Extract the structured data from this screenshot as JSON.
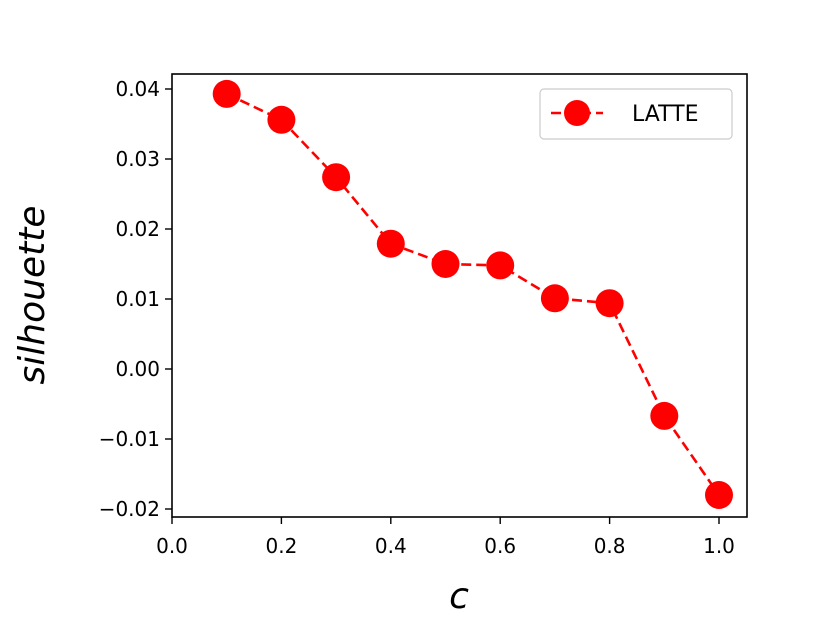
{
  "chart_data": {
    "type": "line",
    "xlabel": "c",
    "ylabel": "silhouette",
    "xlim": [
      0.0,
      1.05
    ],
    "ylim": [
      -0.021,
      0.042
    ],
    "x_ticks": [
      "0.0",
      "0.2",
      "0.4",
      "0.6",
      "0.8",
      "1.0"
    ],
    "y_ticks": [
      "0.04",
      "0.03",
      "0.02",
      "0.01",
      "0.00",
      "−0.01",
      "−0.02"
    ],
    "grid": false,
    "legend_position": "upper-right",
    "series": [
      {
        "name": "LATTE",
        "color": "#ff0000",
        "line_style": "dashed",
        "marker": "circle",
        "x": [
          0.1,
          0.2,
          0.3,
          0.4,
          0.5,
          0.6,
          0.7,
          0.8,
          0.9,
          1.0
        ],
        "y": [
          0.0393,
          0.0356,
          0.0274,
          0.0179,
          0.015,
          0.0148,
          0.0101,
          0.0094,
          -0.0067,
          -0.018
        ]
      }
    ]
  }
}
